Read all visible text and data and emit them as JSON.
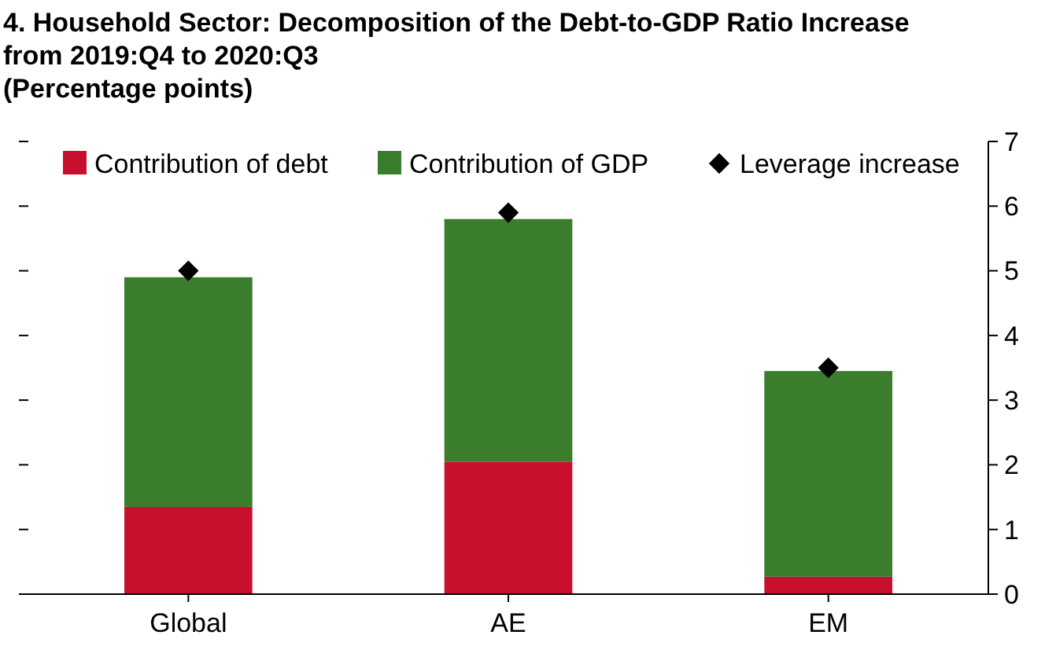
{
  "chart_data": {
    "type": "bar",
    "title": "4. Household Sector: Decomposition of the Debt-to-GDP Ratio Increase from 2019:Q4 to 2020:Q3",
    "subtitle": "(Percentage points)",
    "categories": [
      "Global",
      "AE",
      "EM"
    ],
    "stacked": true,
    "series": [
      {
        "name": "Contribution of debt",
        "color": "#c8102e",
        "values": [
          1.35,
          2.05,
          0.27
        ]
      },
      {
        "name": "Contribution of GDP",
        "color": "#3a7d2c",
        "values": [
          3.55,
          3.75,
          3.18
        ]
      },
      {
        "name": "Leverage increase",
        "type": "scatter",
        "color": "#000000",
        "x": [
          "Global",
          "AE",
          "EM"
        ],
        "values": [
          5.0,
          5.9,
          3.5
        ]
      }
    ],
    "ylim": [
      0,
      7
    ],
    "yticks": [
      0,
      1,
      2,
      3,
      4,
      5,
      6,
      7
    ],
    "marker": "diamond",
    "legend": "top",
    "grid": false
  }
}
